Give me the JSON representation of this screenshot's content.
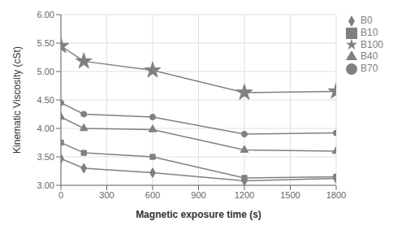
{
  "chart_data": {
    "type": "line",
    "xlabel": "Magnetic exposure time (s)",
    "ylabel": "Kinematic Viscosity (cSt)",
    "x": [
      0,
      150,
      600,
      1200,
      1800
    ],
    "series": [
      {
        "name": "B0",
        "color": "#808080",
        "marker": "diamond",
        "values": [
          3.47,
          3.3,
          3.22,
          3.08,
          3.12
        ]
      },
      {
        "name": "B10",
        "color": "#808080",
        "marker": "square",
        "values": [
          3.75,
          3.57,
          3.5,
          3.13,
          3.15
        ]
      },
      {
        "name": "B40",
        "color": "#808080",
        "marker": "triangle",
        "values": [
          4.2,
          4.0,
          3.98,
          3.62,
          3.6
        ]
      },
      {
        "name": "B70",
        "color": "#808080",
        "marker": "circle",
        "values": [
          4.45,
          4.25,
          4.2,
          3.9,
          3.92
        ]
      },
      {
        "name": "B100",
        "color": "#808080",
        "marker": "star",
        "values": [
          5.45,
          5.18,
          5.02,
          4.63,
          4.65
        ]
      }
    ],
    "xlim": [
      0,
      1800
    ],
    "ylim": [
      3.0,
      6.0
    ],
    "xticks": [
      0,
      300,
      600,
      900,
      1200,
      1500,
      1800
    ],
    "yticks": [
      {
        "value": 3.0,
        "label": "3.00"
      },
      {
        "value": 3.5,
        "label": "3.50"
      },
      {
        "value": 4.0,
        "label": "4.00"
      },
      {
        "value": 4.5,
        "label": "4.50"
      },
      {
        "value": 5.0,
        "label": "5.00"
      },
      {
        "value": 5.5,
        "label": "5.50"
      },
      {
        "value": 6.0,
        "label": "6.00"
      }
    ],
    "grid": true,
    "legend": "right"
  }
}
